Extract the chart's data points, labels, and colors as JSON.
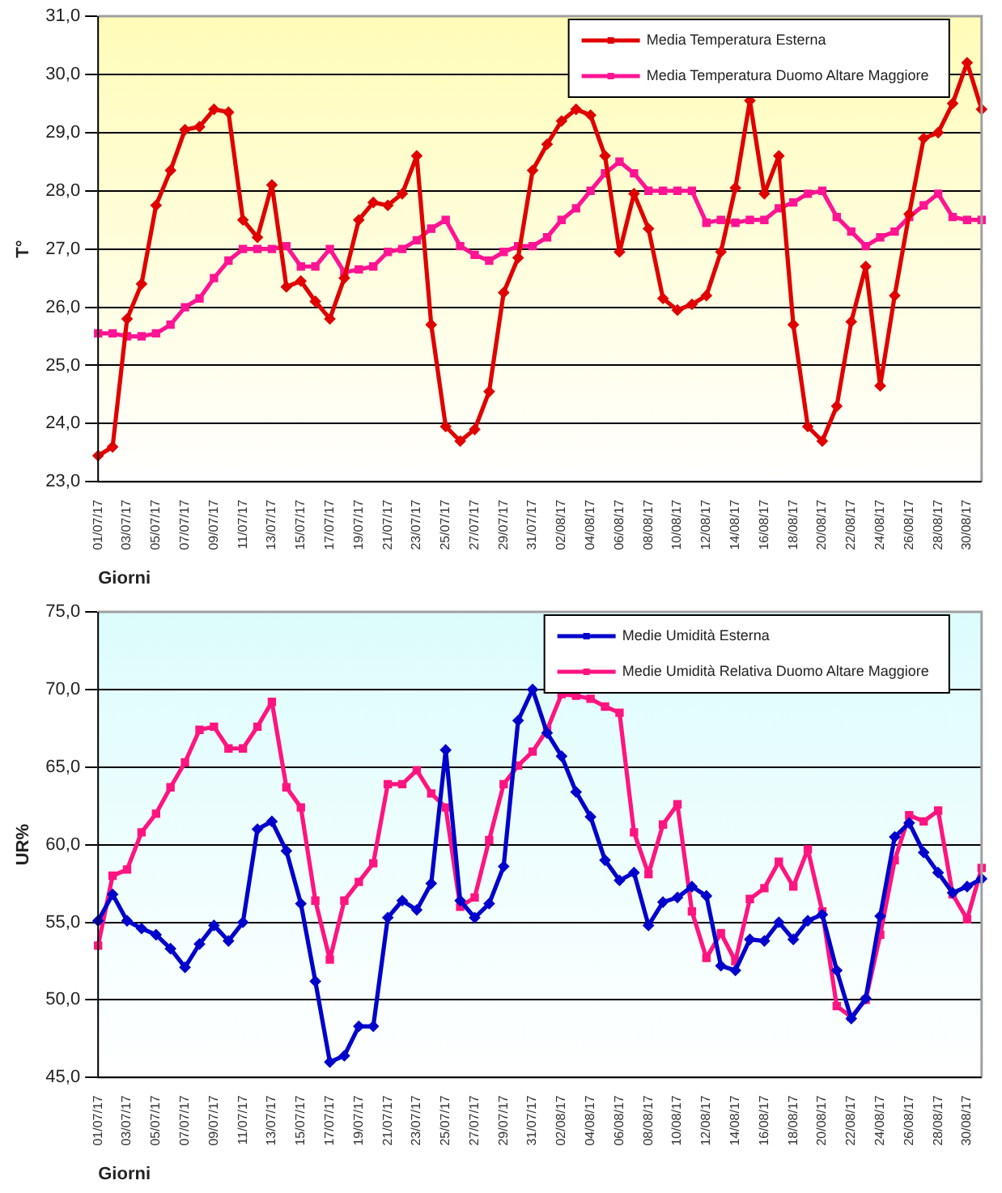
{
  "chart_data": [
    {
      "type": "line",
      "xlabel": "Giorni",
      "ylabel": "T°",
      "categories": [
        "01/07/17",
        null,
        "03/07/17",
        null,
        "05/07/17",
        null,
        "07/07/17",
        null,
        "09/07/17",
        null,
        "11/07/17",
        null,
        "13/07/17",
        null,
        "15/07/17",
        null,
        "17/07/17",
        null,
        "19/07/17",
        null,
        "21/07/17",
        null,
        "23/07/17",
        null,
        "25/07/17",
        null,
        "27/07/17",
        null,
        "29/07/17",
        null,
        "31/07/17",
        null,
        "02/08/17",
        null,
        "04/08/17",
        null,
        "06/08/17",
        null,
        "08/08/17",
        null,
        "10/08/17",
        null,
        "12/08/17",
        null,
        "14/08/17",
        null,
        "16/08/17",
        null,
        "18/08/17",
        null,
        "20/08/17",
        null,
        "22/08/17",
        null,
        "24/08/17",
        null,
        "26/08/17",
        null,
        "28/08/17",
        null,
        "30/08/17",
        null
      ],
      "series": [
        {
          "name": "Media Temperatura Esterna",
          "color": "#e00000",
          "marker": "diamond",
          "values": [
            23.45,
            23.6,
            25.8,
            26.4,
            27.75,
            28.35,
            29.05,
            29.1,
            29.4,
            29.35,
            27.5,
            27.2,
            28.1,
            26.35,
            26.45,
            26.1,
            25.8,
            26.5,
            27.5,
            27.8,
            27.75,
            27.95,
            28.6,
            25.7,
            23.95,
            23.7,
            23.9,
            24.55,
            26.25,
            26.85,
            28.35,
            28.8,
            29.2,
            29.4,
            29.3,
            28.6,
            26.95,
            27.95,
            27.35,
            26.15,
            25.95,
            26.05,
            26.2,
            26.95,
            28.05,
            29.55,
            27.95,
            28.6,
            25.7,
            23.95,
            23.7,
            24.3,
            25.75,
            26.7,
            24.65,
            26.2,
            27.6,
            28.9,
            29.0,
            29.5,
            30.2,
            29.4
          ]
        },
        {
          "name": "Media Temperatura Duomo Altare Maggiore",
          "color": "#ff1493",
          "marker": "square",
          "values": [
            25.55,
            25.55,
            25.5,
            25.5,
            25.55,
            25.7,
            26.0,
            26.15,
            26.5,
            26.8,
            27.0,
            27.0,
            27.0,
            27.05,
            26.7,
            26.7,
            27.0,
            26.6,
            26.65,
            26.7,
            26.95,
            27.0,
            27.15,
            27.35,
            27.5,
            27.05,
            26.9,
            26.8,
            26.95,
            27.05,
            27.05,
            27.2,
            27.5,
            27.7,
            28.0,
            28.3,
            28.5,
            28.3,
            28.0,
            28.0,
            28.0,
            28.0,
            27.45,
            27.5,
            27.45,
            27.5,
            27.5,
            27.7,
            27.8,
            27.95,
            28.0,
            27.55,
            27.3,
            27.05,
            27.2,
            27.3,
            27.55,
            27.75,
            27.95,
            27.55,
            27.5,
            27.5
          ]
        }
      ],
      "ylim": [
        23,
        31
      ],
      "yticks": [
        {
          "value": 23,
          "label": "23,0"
        },
        {
          "value": 24,
          "label": "24,0"
        },
        {
          "value": 25,
          "label": "25,0"
        },
        {
          "value": 26,
          "label": "26,0"
        },
        {
          "value": 27,
          "label": "27,0"
        },
        {
          "value": 28,
          "label": "28,0"
        },
        {
          "value": 29,
          "label": "29,0"
        },
        {
          "value": 30,
          "label": "30,0"
        },
        {
          "value": 31,
          "label": "31,0"
        }
      ],
      "grid": "y",
      "legend": "top right",
      "line_style": "solid"
    },
    {
      "type": "line",
      "xlabel": "Giorni",
      "ylabel": "UR%",
      "categories": [
        "01/07/17",
        null,
        "03/07/17",
        null,
        "05/07/17",
        null,
        "07/07/17",
        null,
        "09/07/17",
        null,
        "11/07/17",
        null,
        "13/07/17",
        null,
        "15/07/17",
        null,
        "17/07/17",
        null,
        "19/07/17",
        null,
        "21/07/17",
        null,
        "23/07/17",
        null,
        "25/07/17",
        null,
        "27/07/17",
        null,
        "29/07/17",
        null,
        "31/07/17",
        null,
        "02/08/17",
        null,
        "04/08/17",
        null,
        "06/08/17",
        null,
        "08/08/17",
        null,
        "10/08/17",
        null,
        "12/08/17",
        null,
        "14/08/17",
        null,
        "16/08/17",
        null,
        "18/08/17",
        null,
        "20/08/17",
        null,
        "22/08/17",
        null,
        "24/08/17",
        null,
        "26/08/17",
        null,
        "28/08/17",
        null,
        "30/08/17",
        null
      ],
      "series": [
        {
          "name": "Medie Umidità Esterna",
          "color": "#0000cc",
          "marker": "diamond",
          "values": [
            55.1,
            56.8,
            55.1,
            54.6,
            54.2,
            53.3,
            52.1,
            53.6,
            54.8,
            53.8,
            55.0,
            61.0,
            61.5,
            59.6,
            56.2,
            51.2,
            46.0,
            46.4,
            48.3,
            48.3,
            55.3,
            56.4,
            55.8,
            57.5,
            66.1,
            56.4,
            55.3,
            56.2,
            58.6,
            68.0,
            70.0,
            67.2,
            65.7,
            63.4,
            61.8,
            59.0,
            57.7,
            58.2,
            54.8,
            56.3,
            56.6,
            57.3,
            56.7,
            52.2,
            51.9,
            53.9,
            53.8,
            55.0,
            53.9,
            55.1,
            55.5,
            51.9,
            48.8,
            50.1,
            55.4,
            60.5,
            61.4,
            59.5,
            58.2,
            56.9,
            57.3,
            57.8
          ]
        },
        {
          "name": "Medie Umidità Relativa Duomo Altare Maggiore",
          "color": "#ff1480",
          "marker": "square",
          "values": [
            53.5,
            58.0,
            58.4,
            60.8,
            62.0,
            63.7,
            65.3,
            67.4,
            67.6,
            66.2,
            66.2,
            67.6,
            69.2,
            63.7,
            62.4,
            56.4,
            52.6,
            56.4,
            57.6,
            58.8,
            63.9,
            63.9,
            64.8,
            63.3,
            62.4,
            56.0,
            56.6,
            60.3,
            63.9,
            65.1,
            66.0,
            67.4,
            69.7,
            69.6,
            69.4,
            68.9,
            68.5,
            60.8,
            58.1,
            61.3,
            62.6,
            55.7,
            52.7,
            54.3,
            52.5,
            56.5,
            57.2,
            58.9,
            57.3,
            59.7,
            55.7,
            49.6,
            48.9,
            50.0,
            54.2,
            59.0,
            61.9,
            61.5,
            62.2,
            56.8,
            55.2,
            58.5
          ]
        }
      ],
      "ylim": [
        45,
        75
      ],
      "yticks": [
        {
          "value": 45,
          "label": "45,0"
        },
        {
          "value": 50,
          "label": "50,0"
        },
        {
          "value": 55,
          "label": "55,0"
        },
        {
          "value": 60,
          "label": "60,0"
        },
        {
          "value": 65,
          "label": "65,0"
        },
        {
          "value": 70,
          "label": "70,0"
        },
        {
          "value": 75,
          "label": "75,0"
        }
      ],
      "grid": "y",
      "legend": "top right",
      "line_style": "solid"
    }
  ]
}
